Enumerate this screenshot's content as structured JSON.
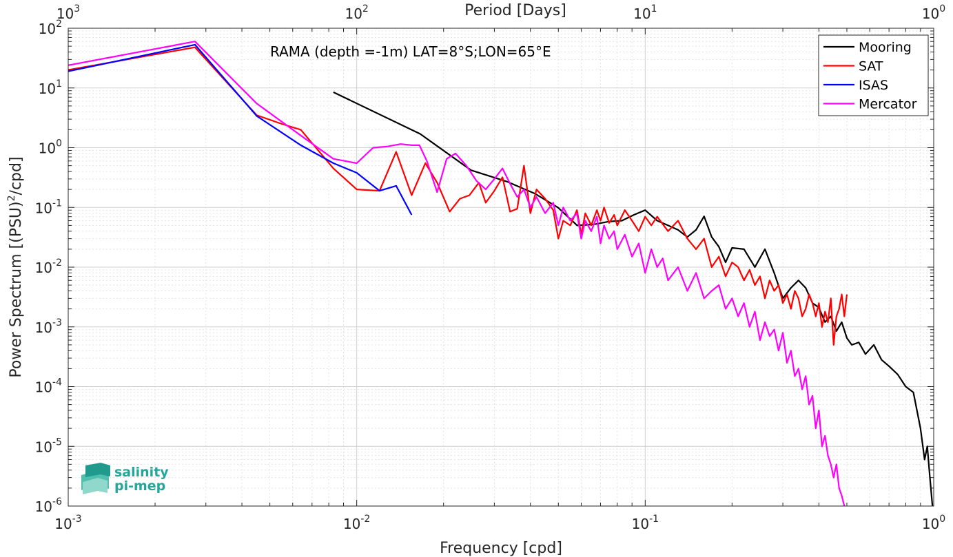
{
  "chart_data": {
    "type": "line",
    "xscale": "log",
    "yscale": "log",
    "xlim": [
      0.001,
      1
    ],
    "ylim": [
      1e-06,
      100
    ],
    "xlabel": "Frequency [cpd]",
    "ylabel_main": "Power Spectrum [(PSU)",
    "ylabel_sup": "2",
    "ylabel_tail": "/cpd]",
    "top_axis_label": "Period [Days]",
    "annotation": "RAMA (depth =-1m) LAT=8°S;LON=65°E",
    "grid": true,
    "legend_position": "top-right",
    "x_ticks": [
      {
        "value": 0.001,
        "base": "10",
        "exp": "-3"
      },
      {
        "value": 0.01,
        "base": "10",
        "exp": "-2"
      },
      {
        "value": 0.1,
        "base": "10",
        "exp": "-1"
      },
      {
        "value": 1,
        "base": "10",
        "exp": "0"
      }
    ],
    "y_ticks": [
      {
        "value": 100,
        "base": "10",
        "exp": "2"
      },
      {
        "value": 10,
        "base": "10",
        "exp": "1"
      },
      {
        "value": 1,
        "base": "10",
        "exp": "0"
      },
      {
        "value": 0.1,
        "base": "10",
        "exp": "-1"
      },
      {
        "value": 0.01,
        "base": "10",
        "exp": "-2"
      },
      {
        "value": 0.001,
        "base": "10",
        "exp": "-3"
      },
      {
        "value": 0.0001,
        "base": "10",
        "exp": "-4"
      },
      {
        "value": 1e-05,
        "base": "10",
        "exp": "-5"
      },
      {
        "value": 1e-06,
        "base": "10",
        "exp": "-6"
      }
    ],
    "top_ticks": [
      {
        "value": 0.001,
        "base": "10",
        "exp": "3"
      },
      {
        "value": 0.01,
        "base": "10",
        "exp": "2"
      },
      {
        "value": 0.1,
        "base": "10",
        "exp": "1"
      },
      {
        "value": 1,
        "base": "10",
        "exp": "0"
      }
    ],
    "series": [
      {
        "name": "Mooring",
        "color": "#000000",
        "x": [
          0.0083,
          0.0166,
          0.0249,
          0.0332,
          0.0415,
          0.0498,
          0.0581,
          0.0664,
          0.0747,
          0.083,
          0.0913,
          0.1,
          0.11,
          0.12,
          0.13,
          0.14,
          0.15,
          0.16,
          0.17,
          0.18,
          0.19,
          0.2,
          0.22,
          0.24,
          0.26,
          0.28,
          0.3,
          0.32,
          0.34,
          0.36,
          0.38,
          0.4,
          0.42,
          0.44,
          0.46,
          0.48,
          0.5,
          0.52,
          0.55,
          0.58,
          0.62,
          0.66,
          0.7,
          0.75,
          0.8,
          0.85,
          0.9,
          0.93,
          0.95,
          0.97,
          0.99
        ],
        "y": [
          8.5,
          1.7,
          0.42,
          0.27,
          0.17,
          0.1,
          0.05,
          0.052,
          0.058,
          0.06,
          0.075,
          0.09,
          0.06,
          0.05,
          0.042,
          0.032,
          0.042,
          0.071,
          0.032,
          0.022,
          0.012,
          0.021,
          0.02,
          0.01,
          0.02,
          0.008,
          0.003,
          0.0045,
          0.006,
          0.0045,
          0.0025,
          0.0021,
          0.0012,
          0.0015,
          0.00085,
          0.0012,
          0.00065,
          0.0005,
          0.00055,
          0.00035,
          0.0005,
          0.00028,
          0.00022,
          0.00016,
          0.0001,
          8e-05,
          2e-05,
          6e-06,
          1e-05,
          3e-06,
          1e-06
        ]
      },
      {
        "name": "SAT",
        "color": "#ff0000",
        "x": [
          0.001,
          0.00275,
          0.0045,
          0.0055,
          0.0064,
          0.0083,
          0.01,
          0.012,
          0.0137,
          0.0155,
          0.0173,
          0.019,
          0.021,
          0.0228,
          0.0246,
          0.0265,
          0.028,
          0.03,
          0.032,
          0.034,
          0.036,
          0.038,
          0.04,
          0.042,
          0.045,
          0.048,
          0.05,
          0.052,
          0.055,
          0.058,
          0.06,
          0.062,
          0.065,
          0.068,
          0.07,
          0.072,
          0.075,
          0.078,
          0.08,
          0.085,
          0.09,
          0.095,
          0.1,
          0.105,
          0.11,
          0.12,
          0.13,
          0.14,
          0.15,
          0.16,
          0.17,
          0.18,
          0.19,
          0.2,
          0.21,
          0.22,
          0.23,
          0.24,
          0.25,
          0.26,
          0.27,
          0.28,
          0.29,
          0.3,
          0.31,
          0.32,
          0.33,
          0.34,
          0.35,
          0.36,
          0.37,
          0.38,
          0.39,
          0.4,
          0.41,
          0.42,
          0.43,
          0.44,
          0.45,
          0.46,
          0.47,
          0.48,
          0.49,
          0.5
        ],
        "y": [
          20,
          48,
          3.5,
          2.5,
          2,
          0.45,
          0.2,
          0.19,
          0.85,
          0.16,
          0.55,
          0.26,
          0.085,
          0.14,
          0.16,
          0.26,
          0.12,
          0.19,
          0.32,
          0.085,
          0.095,
          0.5,
          0.08,
          0.2,
          0.14,
          0.09,
          0.03,
          0.06,
          0.05,
          0.09,
          0.035,
          0.08,
          0.05,
          0.09,
          0.06,
          0.1,
          0.055,
          0.075,
          0.05,
          0.09,
          0.06,
          0.04,
          0.07,
          0.05,
          0.07,
          0.04,
          0.06,
          0.03,
          0.02,
          0.03,
          0.01,
          0.015,
          0.007,
          0.012,
          0.01,
          0.006,
          0.009,
          0.005,
          0.007,
          0.003,
          0.006,
          0.004,
          0.005,
          0.0025,
          0.0035,
          0.002,
          0.004,
          0.003,
          0.0015,
          0.002,
          0.0035,
          0.0025,
          0.0015,
          0.0025,
          0.001,
          0.0018,
          0.0012,
          0.003,
          0.0005,
          0.0015,
          0.002,
          0.0035,
          0.0015,
          0.0035
        ]
      },
      {
        "name": "ISAS",
        "color": "#0000ff",
        "x": [
          0.001,
          0.00275,
          0.0045,
          0.0064,
          0.0083,
          0.01,
          0.012,
          0.0137,
          0.0155
        ],
        "y": [
          19,
          53,
          3.4,
          1.1,
          0.55,
          0.38,
          0.19,
          0.23,
          0.075
        ]
      },
      {
        "name": "Mercator",
        "color": "#ff00ff",
        "x": [
          0.001,
          0.00275,
          0.0045,
          0.0064,
          0.0083,
          0.01,
          0.0114,
          0.0128,
          0.0142,
          0.0155,
          0.0165,
          0.0175,
          0.019,
          0.0205,
          0.022,
          0.024,
          0.026,
          0.028,
          0.03,
          0.032,
          0.034,
          0.036,
          0.038,
          0.04,
          0.042,
          0.045,
          0.048,
          0.05,
          0.052,
          0.055,
          0.058,
          0.06,
          0.062,
          0.065,
          0.068,
          0.07,
          0.072,
          0.075,
          0.078,
          0.08,
          0.085,
          0.09,
          0.095,
          0.1,
          0.105,
          0.11,
          0.115,
          0.12,
          0.13,
          0.14,
          0.15,
          0.16,
          0.17,
          0.18,
          0.19,
          0.2,
          0.21,
          0.22,
          0.23,
          0.24,
          0.25,
          0.26,
          0.27,
          0.28,
          0.29,
          0.3,
          0.31,
          0.32,
          0.33,
          0.34,
          0.35,
          0.36,
          0.37,
          0.38,
          0.39,
          0.4,
          0.41,
          0.42,
          0.43,
          0.44,
          0.45,
          0.46,
          0.47,
          0.48,
          0.49
        ],
        "y": [
          24,
          60,
          5.5,
          1.6,
          0.65,
          0.55,
          1.0,
          1.05,
          1.15,
          1.1,
          1.1,
          0.6,
          0.18,
          0.65,
          0.8,
          0.5,
          0.28,
          0.2,
          0.3,
          0.45,
          0.25,
          0.15,
          0.2,
          0.1,
          0.15,
          0.08,
          0.12,
          0.05,
          0.1,
          0.06,
          0.08,
          0.03,
          0.06,
          0.04,
          0.07,
          0.025,
          0.05,
          0.03,
          0.04,
          0.02,
          0.035,
          0.015,
          0.025,
          0.008,
          0.02,
          0.01,
          0.014,
          0.006,
          0.01,
          0.004,
          0.008,
          0.003,
          0.004,
          0.005,
          0.002,
          0.003,
          0.0015,
          0.0025,
          0.001,
          0.0018,
          0.0006,
          0.0012,
          0.0007,
          0.0009,
          0.0004,
          0.0008,
          0.00025,
          0.0004,
          0.00015,
          0.0002,
          9e-05,
          0.00015,
          5e-05,
          7e-05,
          2e-05,
          4e-05,
          1e-05,
          1.5e-05,
          7e-06,
          5e-06,
          3e-06,
          5e-06,
          2e-06,
          1.5e-06,
          1e-06
        ]
      }
    ]
  },
  "legend": {
    "items": [
      {
        "label": "Mooring",
        "color": "#000000"
      },
      {
        "label": "SAT",
        "color": "#ff0000"
      },
      {
        "label": "ISAS",
        "color": "#0000ff"
      },
      {
        "label": "Mercator",
        "color": "#ff00ff"
      }
    ]
  },
  "logo": {
    "line1": "salinity",
    "line2": "pi-mep",
    "color": "#23a79a"
  }
}
